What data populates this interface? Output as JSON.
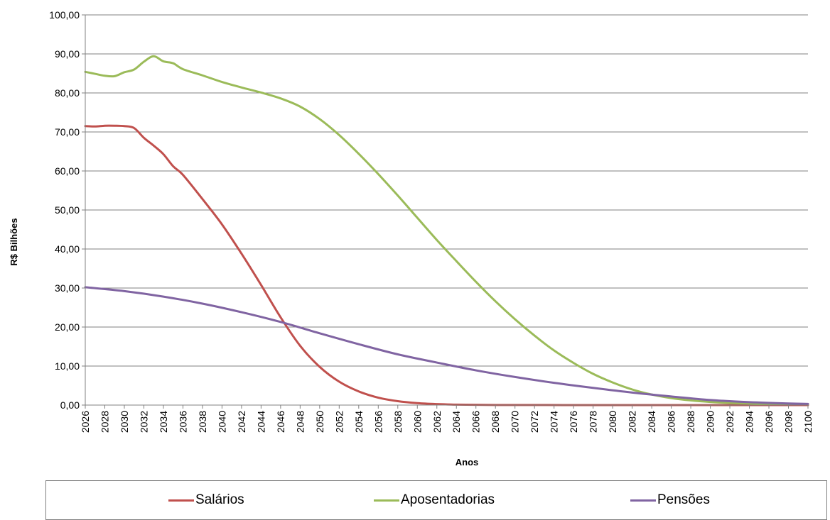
{
  "chart_data": {
    "type": "line",
    "title": "",
    "xlabel": "Anos",
    "ylabel": "R$ Bilhões",
    "ylim": [
      0,
      100
    ],
    "yticks": [
      "0,00",
      "10,00",
      "20,00",
      "30,00",
      "40,00",
      "50,00",
      "60,00",
      "70,00",
      "80,00",
      "90,00",
      "100,00"
    ],
    "xlim": [
      2026,
      2100
    ],
    "xticks": [
      "2026",
      "2028",
      "2030",
      "2032",
      "2034",
      "2036",
      "2038",
      "2040",
      "2042",
      "2044",
      "2046",
      "2048",
      "2050",
      "2052",
      "2054",
      "2056",
      "2058",
      "2060",
      "2062",
      "2064",
      "2066",
      "2068",
      "2070",
      "2072",
      "2074",
      "2076",
      "2078",
      "2080",
      "2082",
      "2084",
      "2086",
      "2088",
      "2090",
      "2092",
      "2094",
      "2096",
      "2098",
      "2100"
    ],
    "grid": true,
    "legend_position": "bottom",
    "series": [
      {
        "name": "Salários",
        "color": "#c0504d",
        "x": [
          2026,
          2027,
          2028,
          2029,
          2030,
          2031,
          2032,
          2033,
          2034,
          2035,
          2036,
          2038,
          2040,
          2042,
          2044,
          2046,
          2048,
          2050,
          2052,
          2054,
          2056,
          2058,
          2060,
          2062,
          2064,
          2066,
          2068,
          2070,
          2075,
          2080,
          2090,
          2100
        ],
        "values": [
          71.5,
          71.4,
          71.6,
          71.6,
          71.5,
          71.0,
          68.5,
          66.5,
          64.3,
          61.2,
          59.0,
          52.8,
          46.3,
          38.8,
          30.8,
          22.5,
          15.2,
          9.8,
          6.0,
          3.5,
          1.9,
          1.0,
          0.5,
          0.25,
          0.12,
          0.06,
          0.03,
          0.02,
          0.01,
          0.0,
          0.0,
          0.0
        ]
      },
      {
        "name": "Aposentadorias",
        "color": "#9bbb59",
        "x": [
          2026,
          2027,
          2028,
          2029,
          2030,
          2031,
          2032,
          2033,
          2034,
          2035,
          2036,
          2038,
          2040,
          2042,
          2044,
          2046,
          2048,
          2050,
          2052,
          2054,
          2056,
          2058,
          2060,
          2062,
          2064,
          2066,
          2068,
          2070,
          2072,
          2074,
          2076,
          2078,
          2080,
          2082,
          2084,
          2086,
          2088,
          2090,
          2092,
          2094,
          2096,
          2098,
          2100
        ],
        "values": [
          85.4,
          84.9,
          84.4,
          84.3,
          85.3,
          86.0,
          88.0,
          89.4,
          88.1,
          87.6,
          86.1,
          84.5,
          82.8,
          81.4,
          80.1,
          78.6,
          76.5,
          73.3,
          69.2,
          64.4,
          59.2,
          53.7,
          48.0,
          42.3,
          36.9,
          31.6,
          26.6,
          22.0,
          17.8,
          14.0,
          10.8,
          8.0,
          5.8,
          4.0,
          2.7,
          1.8,
          1.2,
          0.8,
          0.55,
          0.4,
          0.3,
          0.22,
          0.18
        ]
      },
      {
        "name": "Pensões",
        "color": "#8064a2",
        "x": [
          2026,
          2030,
          2034,
          2038,
          2042,
          2046,
          2050,
          2054,
          2058,
          2062,
          2066,
          2070,
          2074,
          2078,
          2082,
          2086,
          2090,
          2094,
          2098,
          2100
        ],
        "values": [
          30.2,
          29.2,
          27.8,
          26.0,
          23.8,
          21.3,
          18.4,
          15.6,
          13.0,
          10.9,
          8.9,
          7.2,
          5.7,
          4.4,
          3.2,
          2.2,
          1.3,
          0.75,
          0.4,
          0.3
        ]
      }
    ]
  }
}
